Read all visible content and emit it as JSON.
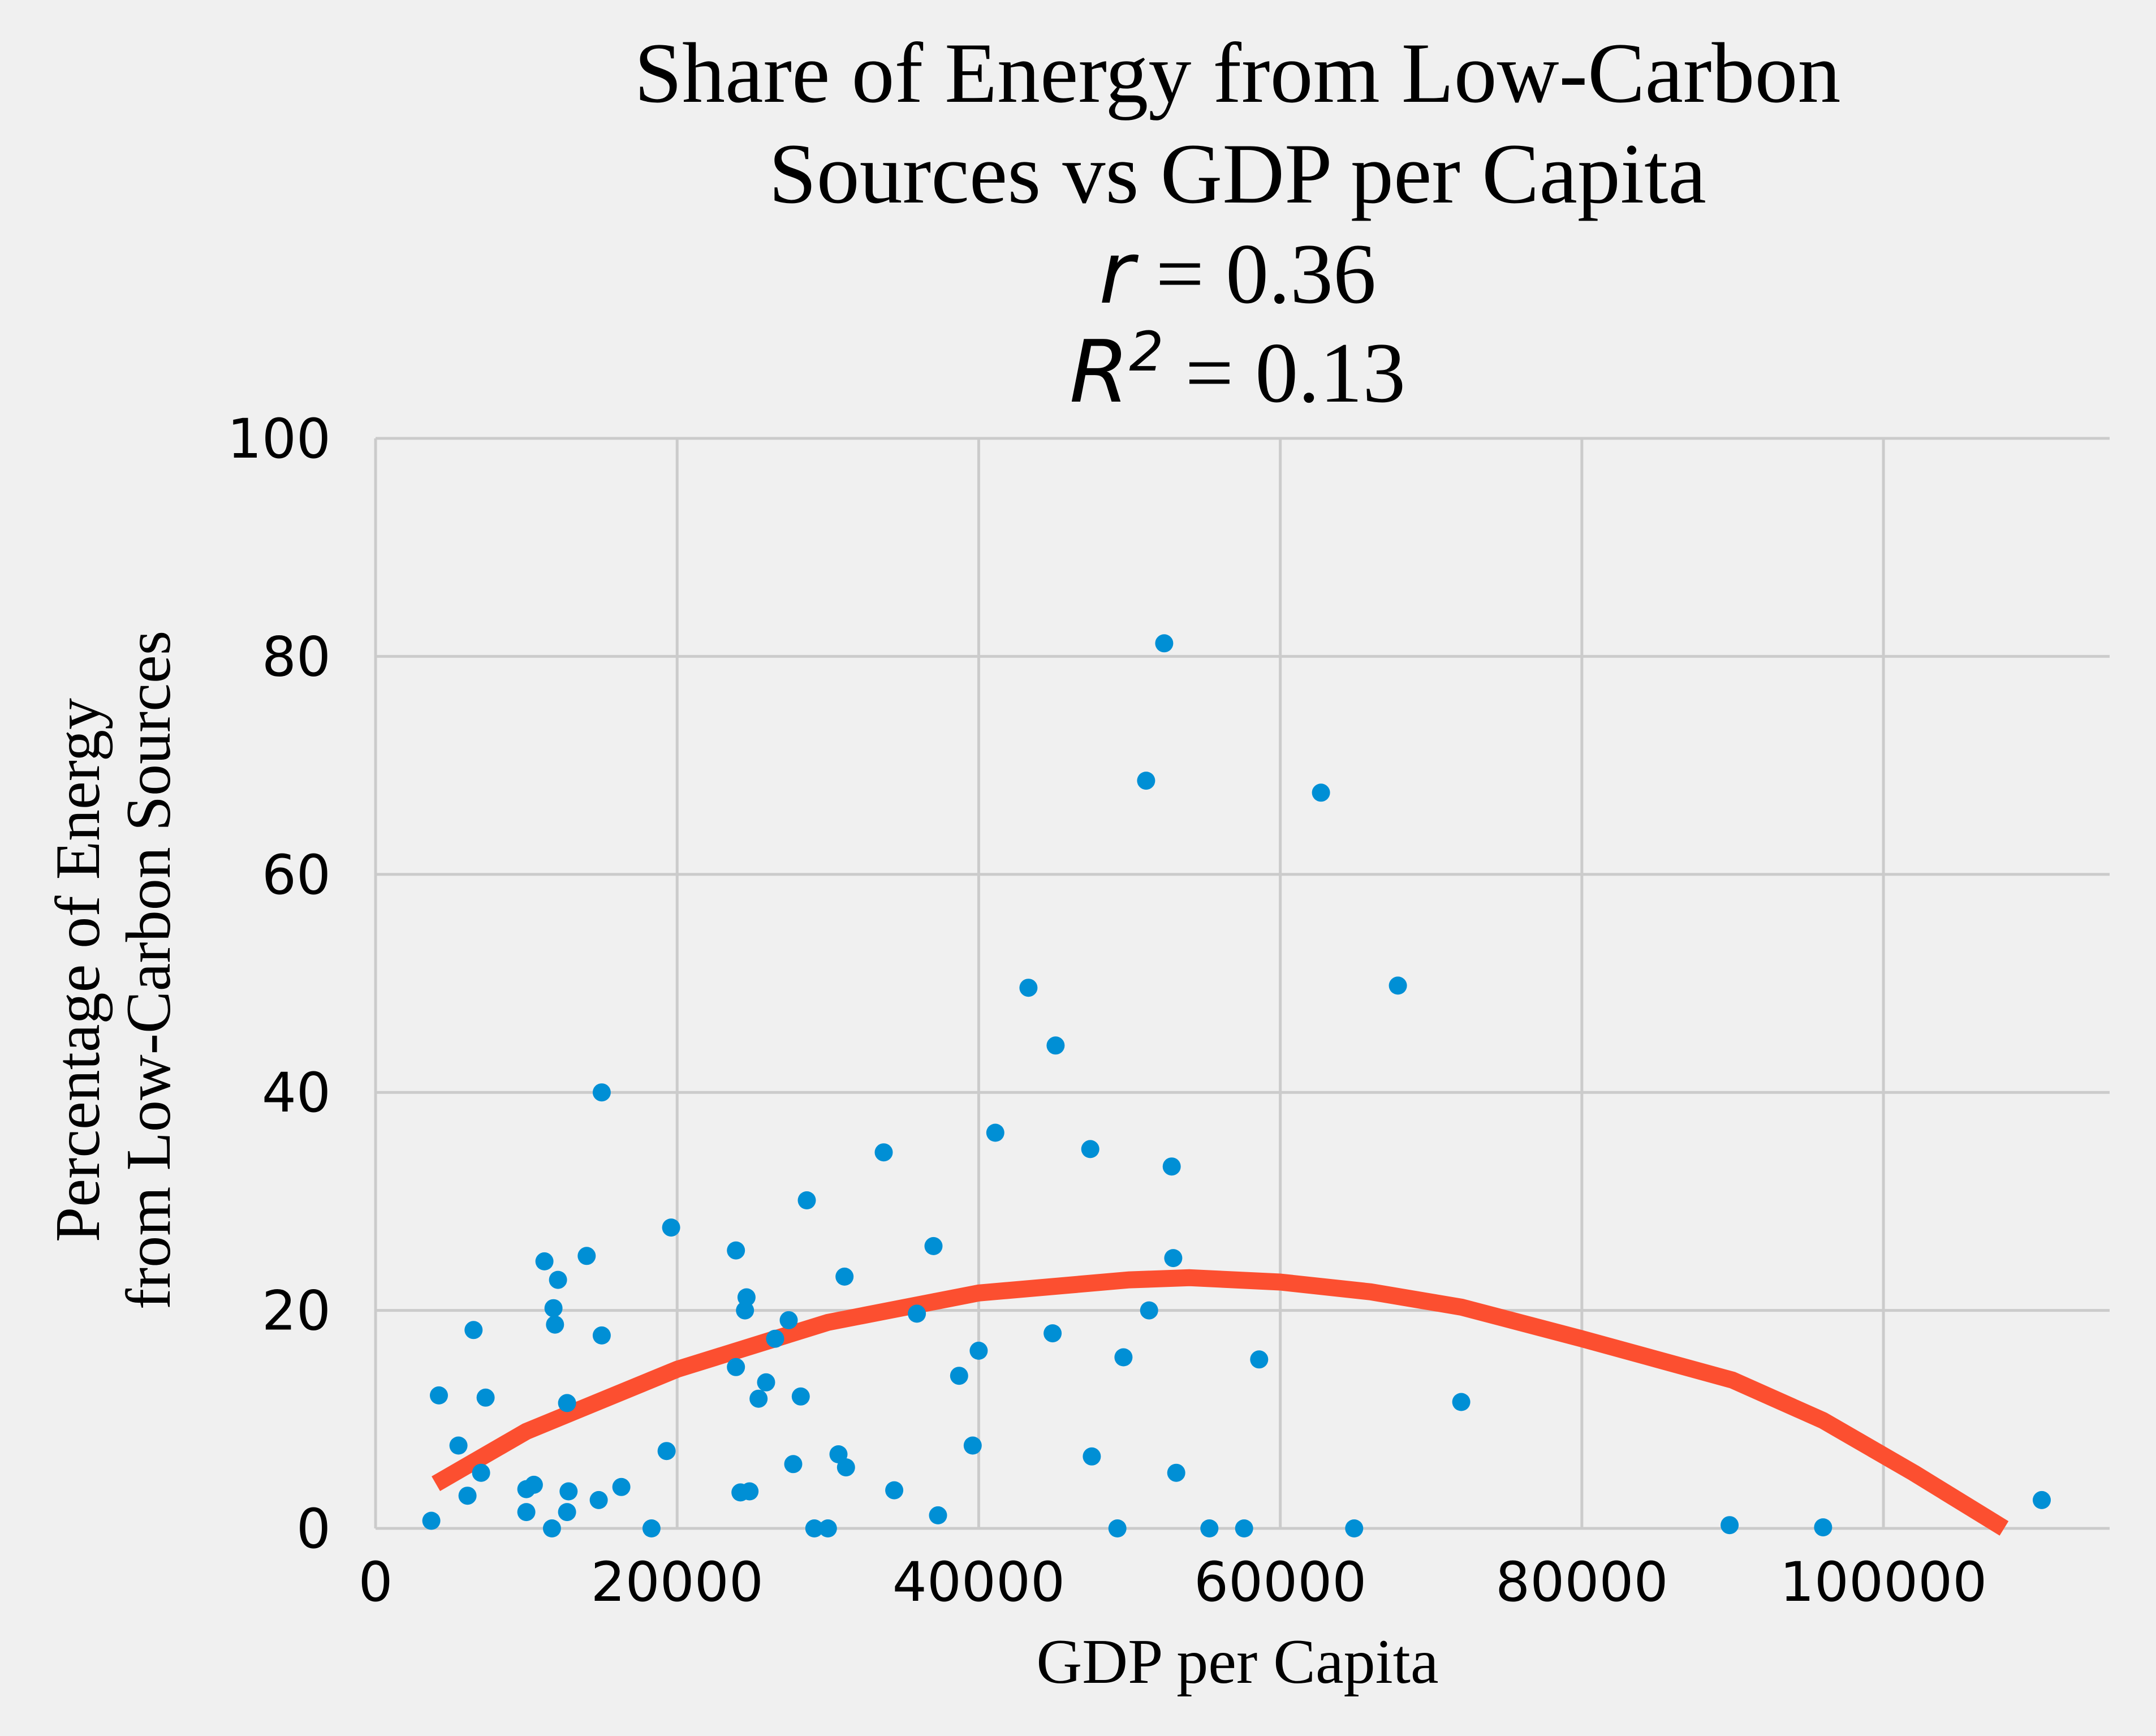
{
  "chart_data": {
    "type": "scatter",
    "title_lines": [
      "Share of Energy from Low-Carbon",
      "Sources vs GDP per Capita"
    ],
    "stats": {
      "r_symbol": "r",
      "r_text": " = 0.36",
      "r2_symbol": "R",
      "r2_sup": "2",
      "r2_text": " = 0.13"
    },
    "xlabel": "GDP per Capita",
    "ylabel_lines": [
      "Percentage of Energy",
      "from Low-Carbon Sources"
    ],
    "xlim": [
      0,
      115000
    ],
    "ylim": [
      0,
      100
    ],
    "xticks": [
      0,
      20000,
      40000,
      60000,
      80000,
      100000
    ],
    "yticks": [
      0,
      20,
      40,
      60,
      80,
      100
    ],
    "grid": true,
    "colors": {
      "points": "#008fd5",
      "fit": "#fc4f30",
      "background": "#f0f0f0",
      "grid": "#cbcbcb"
    },
    "points": [
      [
        3700,
        0.7
      ],
      [
        4200,
        12.2
      ],
      [
        5500,
        7.6
      ],
      [
        6100,
        3.0
      ],
      [
        6500,
        18.2
      ],
      [
        7000,
        5.1
      ],
      [
        7300,
        12.0
      ],
      [
        10000,
        1.5
      ],
      [
        10000,
        3.6
      ],
      [
        10500,
        4.0
      ],
      [
        11200,
        24.5
      ],
      [
        11700,
        0.0
      ],
      [
        11800,
        20.2
      ],
      [
        11900,
        18.7
      ],
      [
        12100,
        22.8
      ],
      [
        12700,
        11.5
      ],
      [
        12700,
        1.5
      ],
      [
        12800,
        3.4
      ],
      [
        14000,
        25.0
      ],
      [
        14800,
        2.6
      ],
      [
        15000,
        40.0
      ],
      [
        15000,
        17.7
      ],
      [
        16300,
        3.8
      ],
      [
        18300,
        0.0
      ],
      [
        19300,
        7.1
      ],
      [
        19600,
        27.6
      ],
      [
        23900,
        25.5
      ],
      [
        23900,
        14.8
      ],
      [
        24200,
        3.3
      ],
      [
        24500,
        20.0
      ],
      [
        24600,
        21.2
      ],
      [
        24800,
        3.4
      ],
      [
        25400,
        11.9
      ],
      [
        25900,
        13.4
      ],
      [
        26500,
        17.4
      ],
      [
        27400,
        19.1
      ],
      [
        27700,
        5.9
      ],
      [
        28200,
        12.1
      ],
      [
        28600,
        30.1
      ],
      [
        29100,
        0.0
      ],
      [
        30000,
        0.0
      ],
      [
        30700,
        6.8
      ],
      [
        31100,
        23.1
      ],
      [
        31200,
        5.6
      ],
      [
        33700,
        34.5
      ],
      [
        34400,
        3.5
      ],
      [
        35900,
        19.7
      ],
      [
        37000,
        25.9
      ],
      [
        37300,
        1.2
      ],
      [
        38700,
        14.0
      ],
      [
        39600,
        7.6
      ],
      [
        40000,
        16.3
      ],
      [
        41100,
        36.3
      ],
      [
        43300,
        49.6
      ],
      [
        44900,
        17.9
      ],
      [
        45100,
        44.3
      ],
      [
        47400,
        34.8
      ],
      [
        47500,
        6.6
      ],
      [
        49200,
        0.0
      ],
      [
        49600,
        15.7
      ],
      [
        51100,
        68.6
      ],
      [
        51300,
        20.0
      ],
      [
        52300,
        81.2
      ],
      [
        52800,
        33.2
      ],
      [
        52900,
        24.8
      ],
      [
        53100,
        5.1
      ],
      [
        55300,
        0.0
      ],
      [
        57600,
        0.0
      ],
      [
        58600,
        15.5
      ],
      [
        62700,
        67.5
      ],
      [
        64900,
        0.0
      ],
      [
        67800,
        49.8
      ],
      [
        72000,
        11.6
      ],
      [
        89800,
        0.3
      ],
      [
        96000,
        0.1
      ],
      [
        110500,
        2.6
      ]
    ],
    "fit_line": [
      [
        4000,
        4.1
      ],
      [
        10000,
        8.9
      ],
      [
        20000,
        14.6
      ],
      [
        30000,
        18.9
      ],
      [
        40000,
        21.6
      ],
      [
        50000,
        22.8
      ],
      [
        54000,
        23.0
      ],
      [
        60000,
        22.6
      ],
      [
        66000,
        21.7
      ],
      [
        72000,
        20.3
      ],
      [
        80000,
        17.4
      ],
      [
        90000,
        13.6
      ],
      [
        96000,
        9.9
      ],
      [
        102000,
        5.1
      ],
      [
        108000,
        0.0
      ]
    ]
  }
}
